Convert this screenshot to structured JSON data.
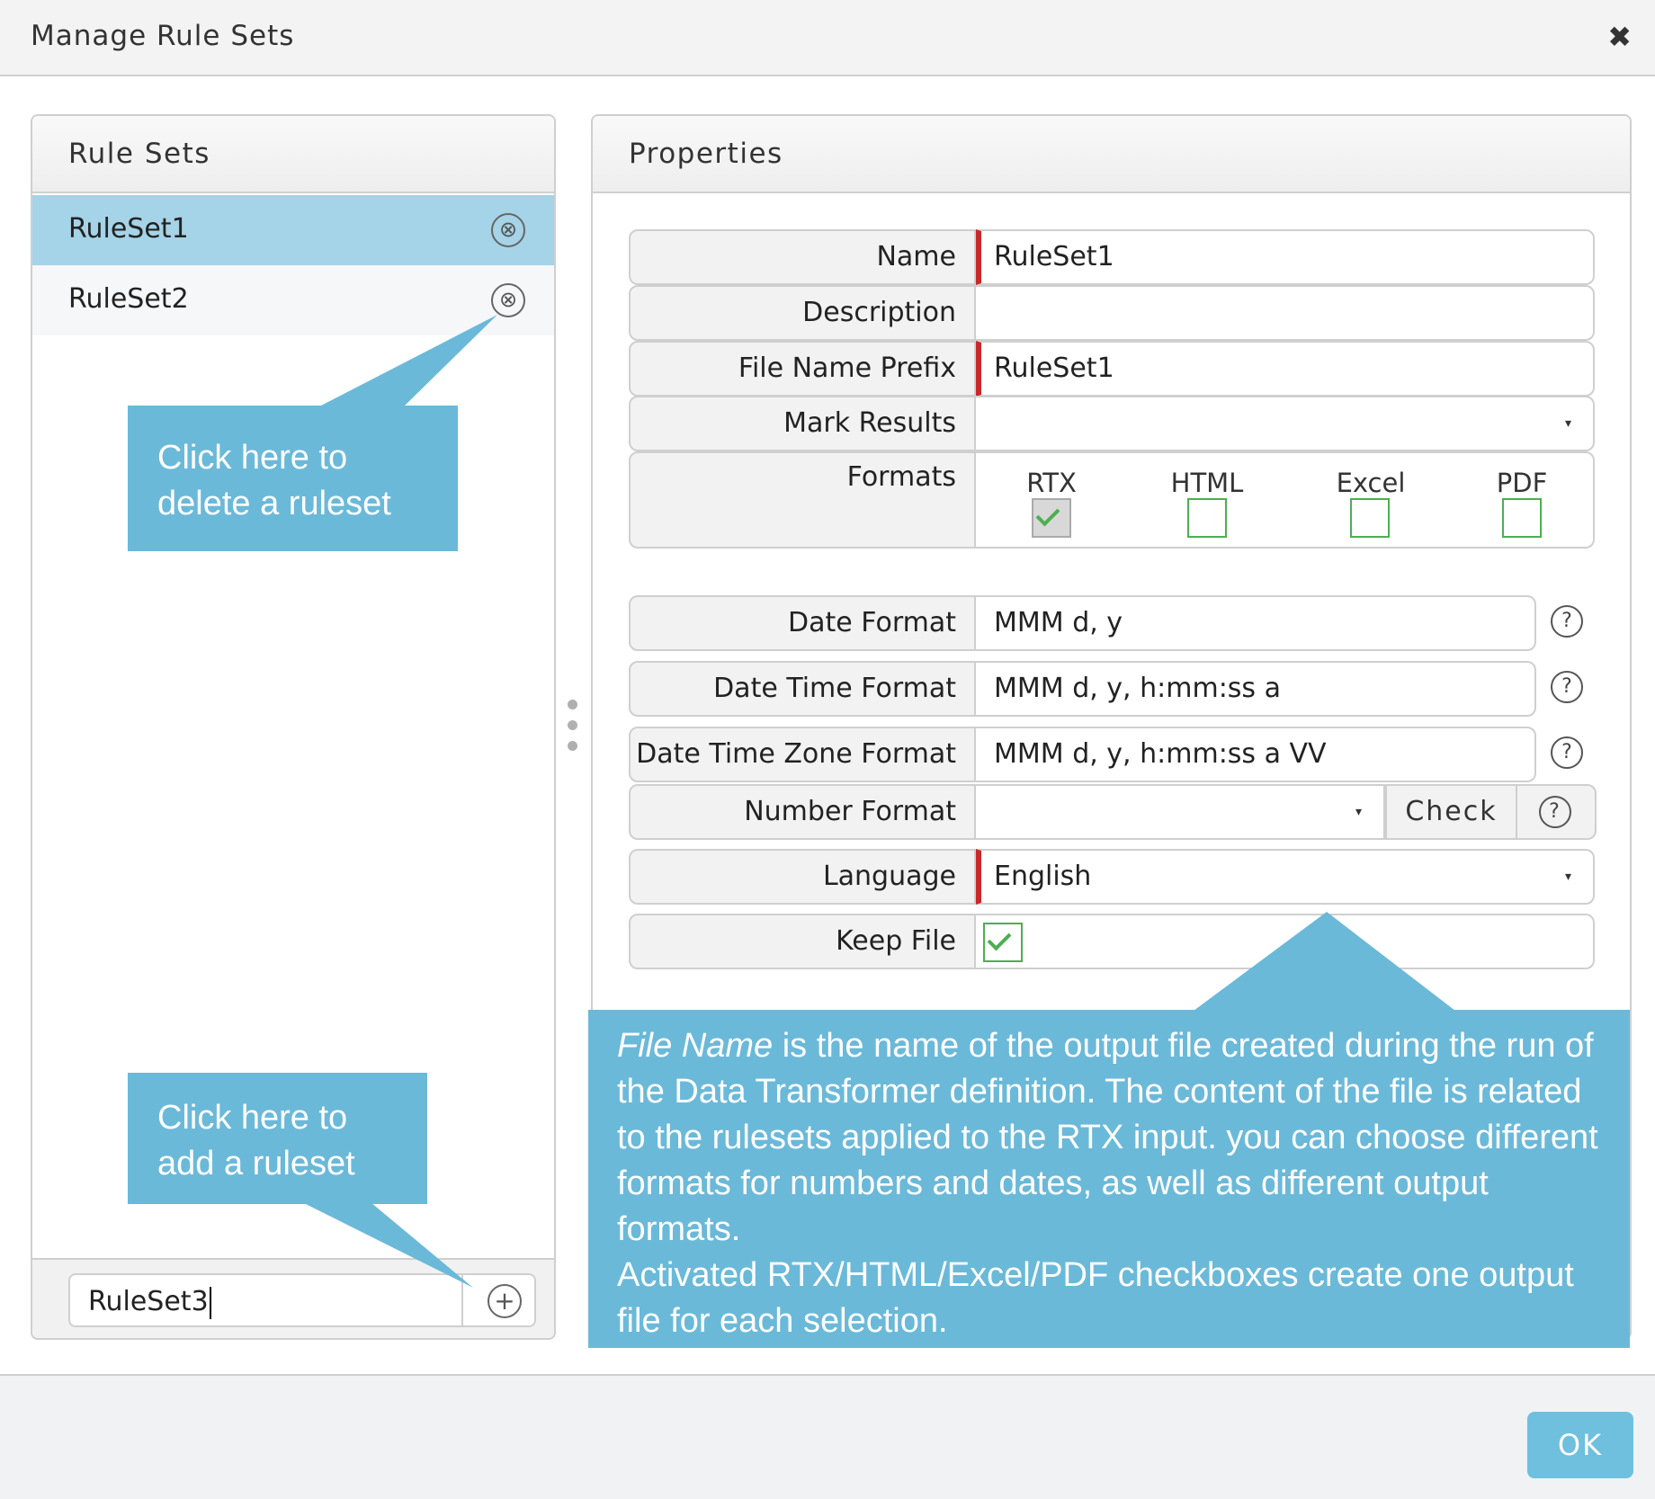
{
  "window": {
    "title": "Manage Rule Sets",
    "close_glyph": "✖"
  },
  "left_panel": {
    "header": "Rule Sets",
    "items": [
      {
        "label": "RuleSet1",
        "selected": true
      },
      {
        "label": "RuleSet2",
        "selected": false
      }
    ],
    "delete_icon": "⊗",
    "add_input_value": "RuleSet3",
    "add_icon": "+"
  },
  "right_panel": {
    "header": "Properties",
    "fields": {
      "name": {
        "label": "Name",
        "value": "RuleSet1"
      },
      "description": {
        "label": "Description",
        "value": ""
      },
      "file_name_prefix": {
        "label": "File Name Prefix",
        "value": "RuleSet1"
      },
      "mark_results": {
        "label": "Mark Results",
        "value": ""
      },
      "formats": {
        "label": "Formats",
        "options": [
          {
            "label": "RTX",
            "checked": true,
            "disabled": true
          },
          {
            "label": "HTML",
            "checked": false
          },
          {
            "label": "Excel",
            "checked": false
          },
          {
            "label": "PDF",
            "checked": false
          }
        ]
      },
      "date_format": {
        "label": "Date Format",
        "value": "MMM d, y"
      },
      "date_time_format": {
        "label": "Date Time Format",
        "value": "MMM d, y, h:mm:ss a"
      },
      "date_time_zone_format": {
        "label": "Date Time Zone Format",
        "value": "MMM d, y, h:mm:ss a VV"
      },
      "number_format": {
        "label": "Number Format",
        "value": "",
        "check_label": "Check"
      },
      "language": {
        "label": "Language",
        "value": "English"
      },
      "keep_file": {
        "label": "Keep File",
        "checked": true
      }
    },
    "help_glyph": "?",
    "dropdown_glyph": "▾"
  },
  "callouts": {
    "delete": {
      "line1": "Click here to",
      "line2": "delete a ruleset"
    },
    "add": {
      "line1": "Click here to",
      "line2": "add a ruleset"
    },
    "info": {
      "emph": "File Name",
      "text1": " is the name of the output file created during the run of the Data Transformer definition. The content of the file is related to the rulesets applied to the RTX input. you can choose different formats for numbers and dates, as well as different output formats.",
      "text2": "Activated RTX/HTML/Excel/PDF checkboxes create one output file for each selection."
    }
  },
  "footer": {
    "ok_label": "OK"
  },
  "colors": {
    "callout": "#6bb9d9",
    "selected_row": "#a5d3e8",
    "required_marker": "#c9292b",
    "checkbox": "#4caf50",
    "ok_button": "#6fc0df"
  }
}
